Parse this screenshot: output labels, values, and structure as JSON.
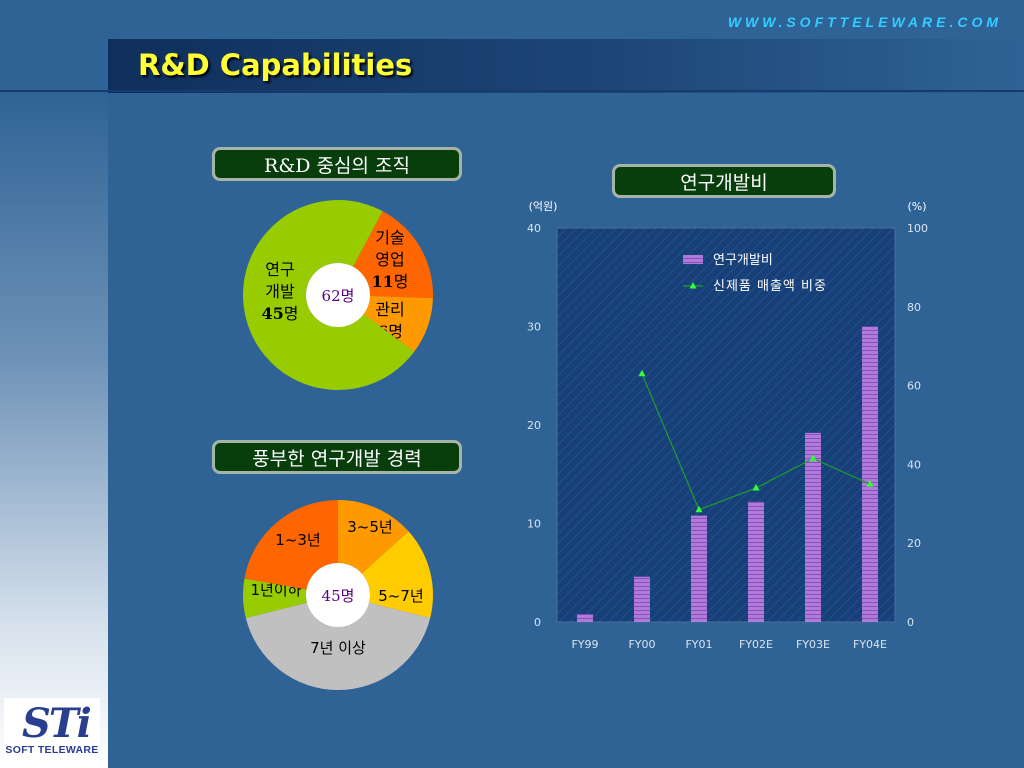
{
  "header": {
    "title": "R&D Capabilities",
    "website": "WWW.SOFTTELEWARE.COM"
  },
  "logo": {
    "mark": "STi",
    "text": "SOFT TELEWARE"
  },
  "colors": {
    "bar": "#b07ad8",
    "line": "#1e9e2c",
    "marker": "#33ff33",
    "pie_green": "#99cc00",
    "pie_orange_dark": "#ff6600",
    "pie_orange": "#ff9900",
    "pie_yellow": "#ffcc00",
    "pie_gray": "#c0c0c0"
  },
  "chart_data": [
    {
      "type": "pie",
      "title": "R&D 중심의 조직",
      "center_label": {
        "num": "62",
        "unit": "명"
      },
      "slices": [
        {
          "lines": [
            "기술",
            "영업"
          ],
          "value": 11,
          "unit": "명",
          "color": "#ff6600"
        },
        {
          "lines": [
            "관리"
          ],
          "value": 6,
          "unit": "명",
          "color": "#ff9900"
        },
        {
          "lines": [
            "연구",
            "개발"
          ],
          "value": 45,
          "unit": "명",
          "color": "#99cc00"
        }
      ]
    },
    {
      "type": "pie",
      "title": "풍부한 연구개발 경력",
      "center_label": {
        "num": "45",
        "unit": "명"
      },
      "slices": [
        {
          "label": "3~5년",
          "value": 6,
          "color": "#ff9900"
        },
        {
          "label": "5~7년",
          "value": 7,
          "color": "#ffcc00"
        },
        {
          "label": "7년 이상",
          "value": 19,
          "color": "#c0c0c0"
        },
        {
          "label": "1년이하",
          "value": 3,
          "color": "#99cc00"
        },
        {
          "label": "1~3년",
          "value": 10,
          "color": "#ff6600"
        }
      ]
    },
    {
      "type": "bar",
      "title": "연구개발비",
      "categories": [
        "FY99",
        "FY00",
        "FY01",
        "FY02E",
        "FY03E",
        "FY04E"
      ],
      "y_left": {
        "unit_label": "(억원)",
        "min": 0,
        "max": 40,
        "ticks": [
          "0",
          "10",
          "20",
          "30",
          "40"
        ]
      },
      "y_right": {
        "unit_label": "(%)",
        "min": 0,
        "max": 100,
        "ticks": [
          "0",
          "20",
          "40",
          "60",
          "80",
          "100"
        ]
      },
      "series": [
        {
          "name": "연구개발비",
          "type": "bar",
          "axis": "left",
          "values": [
            0.8,
            4.6,
            10.8,
            12.2,
            19.2,
            30
          ]
        },
        {
          "name": "신제품 매출액 비중",
          "type": "line",
          "axis": "right",
          "values": [
            null,
            63,
            28.5,
            34,
            41.5,
            35
          ]
        }
      ],
      "legend": "top-right"
    }
  ]
}
